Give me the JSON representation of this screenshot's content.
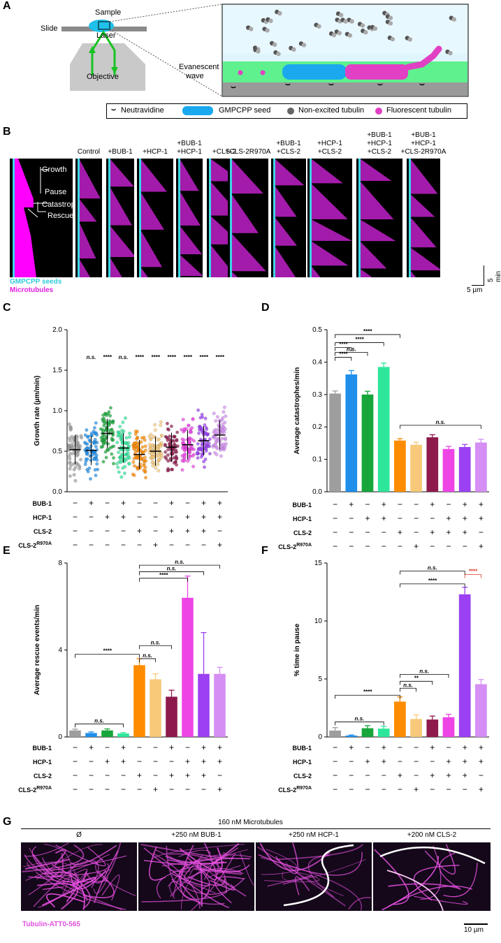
{
  "panels": {
    "a": "A",
    "b": "B",
    "c": "C",
    "d": "D",
    "e": "E",
    "f": "F",
    "g": "G"
  },
  "panelA": {
    "sample": "Sample",
    "slide": "Slide",
    "laser": "Laser",
    "objective": "Objective",
    "evanescent_line1": "Evanescent",
    "evanescent_line2": "wave",
    "legend": {
      "neutravidine": "Neutravidine",
      "seed": "GMPCPP seed",
      "nonexcited": "Non-excited tubulin",
      "fluorescent": "Fluorescent tubulin"
    }
  },
  "panelB": {
    "schematic": {
      "growth": "Growth",
      "pause": "Pause",
      "catastrophe": "Catastrophe",
      "rescue": "Rescue"
    },
    "legend_seeds": "GMPCPP seeds",
    "legend_mt": "Microtubules",
    "conditions": [
      [
        "Control"
      ],
      [
        "+BUB-1"
      ],
      [
        "+HCP-1"
      ],
      [
        "+BUB-1",
        "+HCP-1"
      ],
      [
        "+CLS-2"
      ],
      [
        "+CLS-2R970A"
      ],
      [
        "+BUB-1",
        "+CLS-2"
      ],
      [
        "+HCP-1",
        "+CLS-2"
      ],
      [
        "+BUB-1",
        "+HCP-1",
        "+CLS-2"
      ],
      [
        "+BUB-1",
        "+HCP-1",
        "+CLS-2R970A"
      ]
    ],
    "scale_time": "5 min",
    "scale_length": "5 µm"
  },
  "rows": {
    "bub1": "BUB-1",
    "hcp1": "HCP-1",
    "cls2": "CLS-2",
    "cls2r": "CLS-2R970A"
  },
  "signs": {
    "bub1": [
      "−",
      "+",
      "−",
      "+",
      "−",
      "−",
      "+",
      "−",
      "+",
      "+"
    ],
    "hcp1": [
      "−",
      "−",
      "+",
      "+",
      "−",
      "−",
      "−",
      "+",
      "+",
      "+"
    ],
    "cls2": [
      "−",
      "−",
      "−",
      "−",
      "+",
      "−",
      "+",
      "+",
      "+",
      "−"
    ],
    "cls2r": [
      "−",
      "−",
      "−",
      "−",
      "−",
      "+",
      "−",
      "−",
      "−",
      "+"
    ]
  },
  "colors": [
    "#9e9e9e",
    "#1f8fea",
    "#17a63a",
    "#2ee69a",
    "#ff8c00",
    "#f7c978",
    "#8e1a4c",
    "#ee44e6",
    "#9b40f2",
    "#d58ef4"
  ],
  "chart_data": [
    {
      "panel": "C",
      "type": "scatter",
      "ylabel": "Growth rate (µm/min)",
      "ylim": [
        0,
        2.0
      ],
      "yticks": [
        "0.0",
        "0.5",
        "1.0",
        "1.5",
        "2.0"
      ],
      "medians": [
        0.52,
        0.51,
        0.72,
        0.54,
        0.46,
        0.5,
        0.55,
        0.58,
        0.63,
        0.7
      ],
      "significance": [
        "",
        "n.s.",
        "****",
        "n.s.",
        "****",
        "****",
        "****",
        "****",
        "****",
        "****"
      ]
    },
    {
      "panel": "D",
      "type": "bar",
      "ylabel": "Average catastrophes/min",
      "ylim": [
        0,
        0.5
      ],
      "yticks": [
        "0.0",
        "0.1",
        "0.2",
        "0.3",
        "0.4",
        "0.5"
      ],
      "values": [
        0.303,
        0.362,
        0.3,
        0.385,
        0.158,
        0.145,
        0.168,
        0.132,
        0.138,
        0.152
      ],
      "errors": [
        0.008,
        0.012,
        0.01,
        0.012,
        0.006,
        0.008,
        0.008,
        0.008,
        0.008,
        0.01
      ],
      "brackets": [
        "****",
        "n.s.",
        "****",
        "****",
        "n.s."
      ]
    },
    {
      "panel": "E",
      "type": "bar",
      "ylabel": "Average rescue events/min",
      "ylim": [
        0,
        8
      ],
      "yticks": [
        "0",
        "4",
        "8"
      ],
      "values": [
        0.3,
        0.18,
        0.3,
        0.16,
        3.3,
        2.65,
        1.85,
        6.4,
        2.9,
        2.9
      ],
      "errors": [
        0.06,
        0.05,
        0.07,
        0.04,
        0.3,
        0.25,
        0.3,
        1.0,
        1.9,
        0.3
      ],
      "brackets": [
        "n.s.",
        "****",
        "n.s.",
        "n.s.",
        "****",
        "n.s."
      ]
    },
    {
      "panel": "F",
      "type": "bar",
      "ylabel": "% time in pause",
      "ylim": [
        0,
        15
      ],
      "yticks": [
        "0",
        "5",
        "10",
        "15"
      ],
      "values": [
        0.55,
        0.12,
        0.75,
        0.72,
        3.05,
        1.55,
        1.5,
        1.7,
        12.3,
        4.55
      ],
      "errors": [
        0.25,
        0.05,
        0.22,
        0.2,
        0.4,
        0.35,
        0.3,
        0.25,
        0.6,
        0.4
      ],
      "brackets": [
        "n.s.",
        "****",
        "n.s.",
        "**",
        "n.s.",
        "****",
        "n.s.",
        "****"
      ]
    }
  ],
  "panelG": {
    "header": "160 nM Microtubules",
    "conditions": [
      "Ø",
      "+250 nM BUB-1",
      "+250 nM HCP-1",
      "+200 nM CLS-2"
    ],
    "stain": "Tubulin-ATT0-565",
    "scale": "10 µm"
  }
}
